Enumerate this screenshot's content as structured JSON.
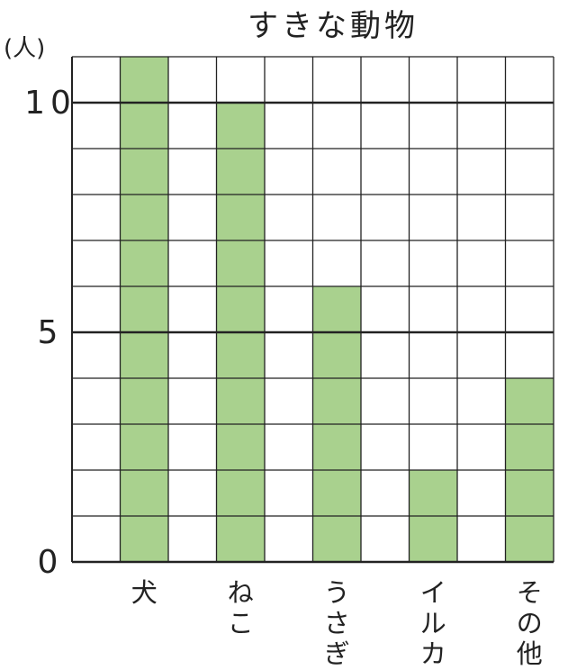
{
  "chart_data": {
    "type": "bar",
    "title": "すきな動物",
    "unit_label": "(人)",
    "categories": [
      "犬",
      "ねこ",
      "うさぎ",
      "イルカ",
      "その他"
    ],
    "values": [
      11,
      10,
      6,
      2,
      4
    ],
    "ylim": [
      0,
      11
    ],
    "y_ticks": [
      {
        "value": 0,
        "label": "0"
      },
      {
        "value": 5,
        "label": "5"
      },
      {
        "value": 10,
        "label": "10"
      }
    ],
    "grid": true,
    "bar_color": "#a9d18e",
    "grid_color": "#222222"
  }
}
